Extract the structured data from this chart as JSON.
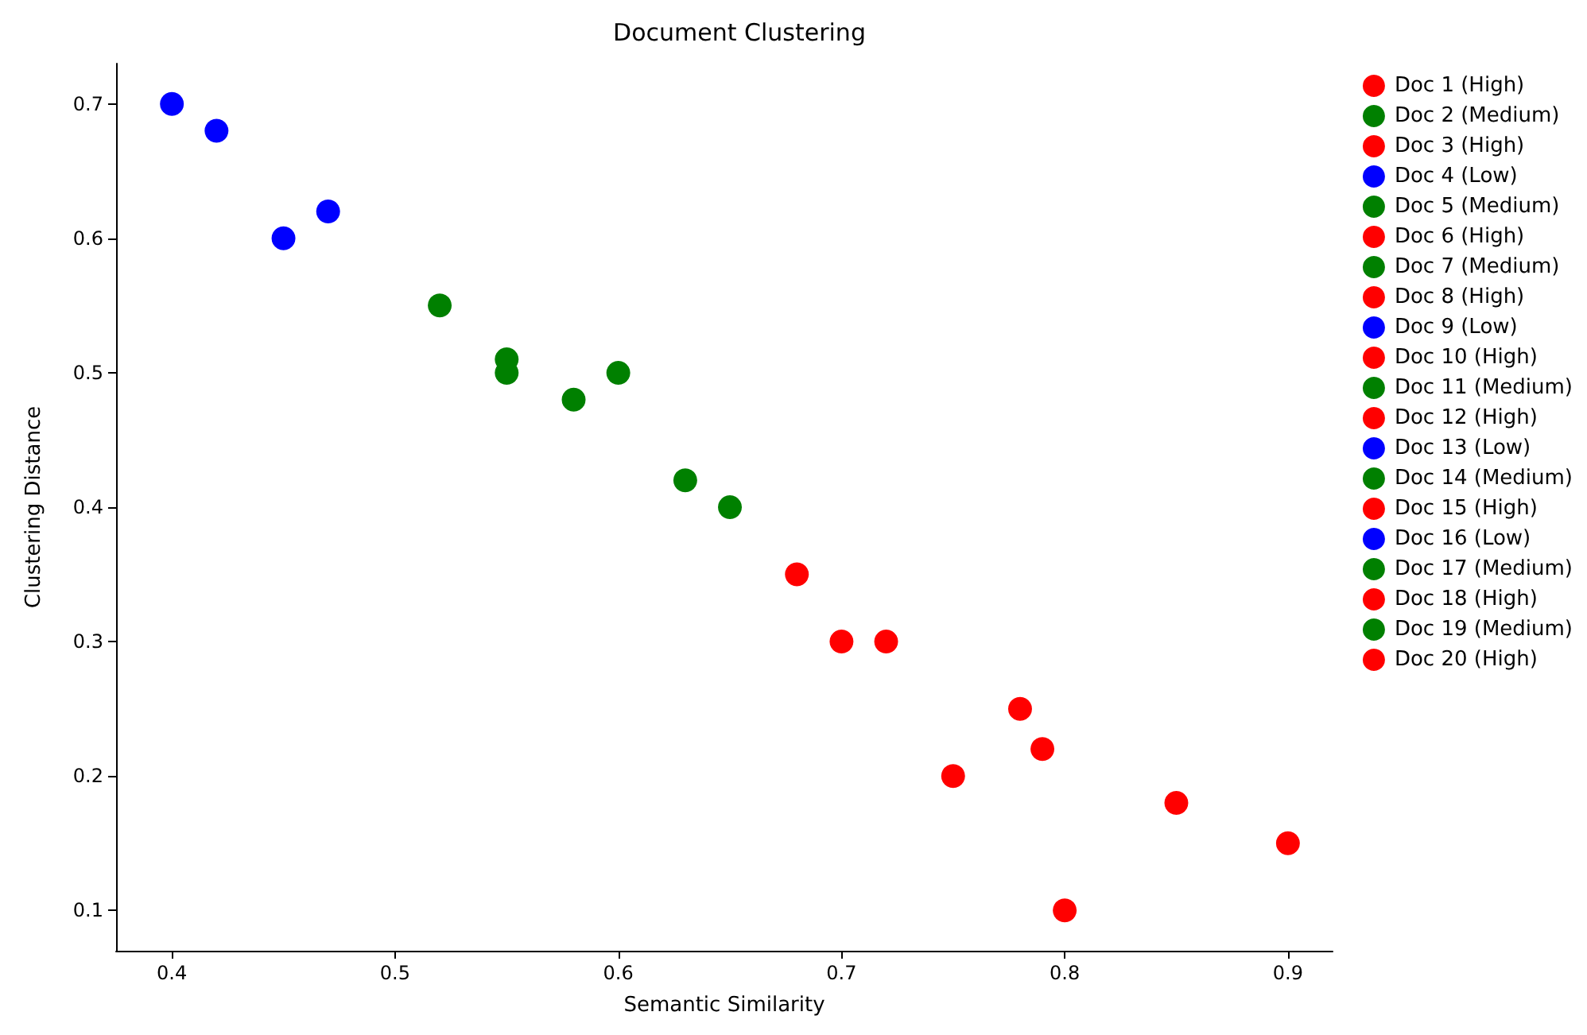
{
  "chart_data": {
    "type": "scatter",
    "title": "Document Clustering",
    "xlabel": "Semantic Similarity",
    "ylabel": "Clustering Distance",
    "xlim": [
      0.375,
      0.92
    ],
    "xticks": [
      0.4,
      0.5,
      0.6,
      0.7,
      0.8,
      0.9
    ],
    "ylim": [
      0.07,
      0.73
    ],
    "yticks": [
      0.1,
      0.2,
      0.3,
      0.4,
      0.5,
      0.6,
      0.7
    ],
    "grid": false,
    "legend": "right",
    "marker": "circle",
    "series": [
      {
        "name": "Doc 1 (High)",
        "color": "#ff0000",
        "x": [
          0.68
        ],
        "values": [
          0.35
        ]
      },
      {
        "name": "Doc 2 (Medium)",
        "color": "#008000",
        "x": [
          0.52
        ],
        "values": [
          0.55
        ]
      },
      {
        "name": "Doc 3 (High)",
        "color": "#ff0000",
        "x": [
          0.7
        ],
        "values": [
          0.3
        ]
      },
      {
        "name": "Doc 4 (Low)",
        "color": "#0000ff",
        "x": [
          0.4
        ],
        "values": [
          0.7
        ]
      },
      {
        "name": "Doc 5 (Medium)",
        "color": "#008000",
        "x": [
          0.55
        ],
        "values": [
          0.51
        ]
      },
      {
        "name": "Doc 6 (High)",
        "color": "#ff0000",
        "x": [
          0.72
        ],
        "values": [
          0.3
        ]
      },
      {
        "name": "Doc 7 (Medium)",
        "color": "#008000",
        "x": [
          0.55
        ],
        "values": [
          0.5
        ]
      },
      {
        "name": "Doc 8 (High)",
        "color": "#ff0000",
        "x": [
          0.75
        ],
        "values": [
          0.2
        ]
      },
      {
        "name": "Doc 9 (Low)",
        "color": "#0000ff",
        "x": [
          0.42
        ],
        "values": [
          0.68
        ]
      },
      {
        "name": "Doc 10 (High)",
        "color": "#ff0000",
        "x": [
          0.78
        ],
        "values": [
          0.25
        ]
      },
      {
        "name": "Doc 11 (Medium)",
        "color": "#008000",
        "x": [
          0.58
        ],
        "values": [
          0.48
        ]
      },
      {
        "name": "Doc 12 (High)",
        "color": "#ff0000",
        "x": [
          0.79
        ],
        "values": [
          0.22
        ]
      },
      {
        "name": "Doc 13 (Low)",
        "color": "#0000ff",
        "x": [
          0.45
        ],
        "values": [
          0.6
        ]
      },
      {
        "name": "Doc 14 (Medium)",
        "color": "#008000",
        "x": [
          0.6
        ],
        "values": [
          0.5
        ]
      },
      {
        "name": "Doc 15 (High)",
        "color": "#ff0000",
        "x": [
          0.8
        ],
        "values": [
          0.1
        ]
      },
      {
        "name": "Doc 16 (Low)",
        "color": "#0000ff",
        "x": [
          0.47
        ],
        "values": [
          0.62
        ]
      },
      {
        "name": "Doc 17 (Medium)",
        "color": "#008000",
        "x": [
          0.63
        ],
        "values": [
          0.42
        ]
      },
      {
        "name": "Doc 18 (High)",
        "color": "#ff0000",
        "x": [
          0.85
        ],
        "values": [
          0.18
        ]
      },
      {
        "name": "Doc 19 (Medium)",
        "color": "#008000",
        "x": [
          0.65
        ],
        "values": [
          0.4
        ]
      },
      {
        "name": "Doc 20 (High)",
        "color": "#ff0000",
        "x": [
          0.9
        ],
        "values": [
          0.15
        ]
      }
    ]
  }
}
